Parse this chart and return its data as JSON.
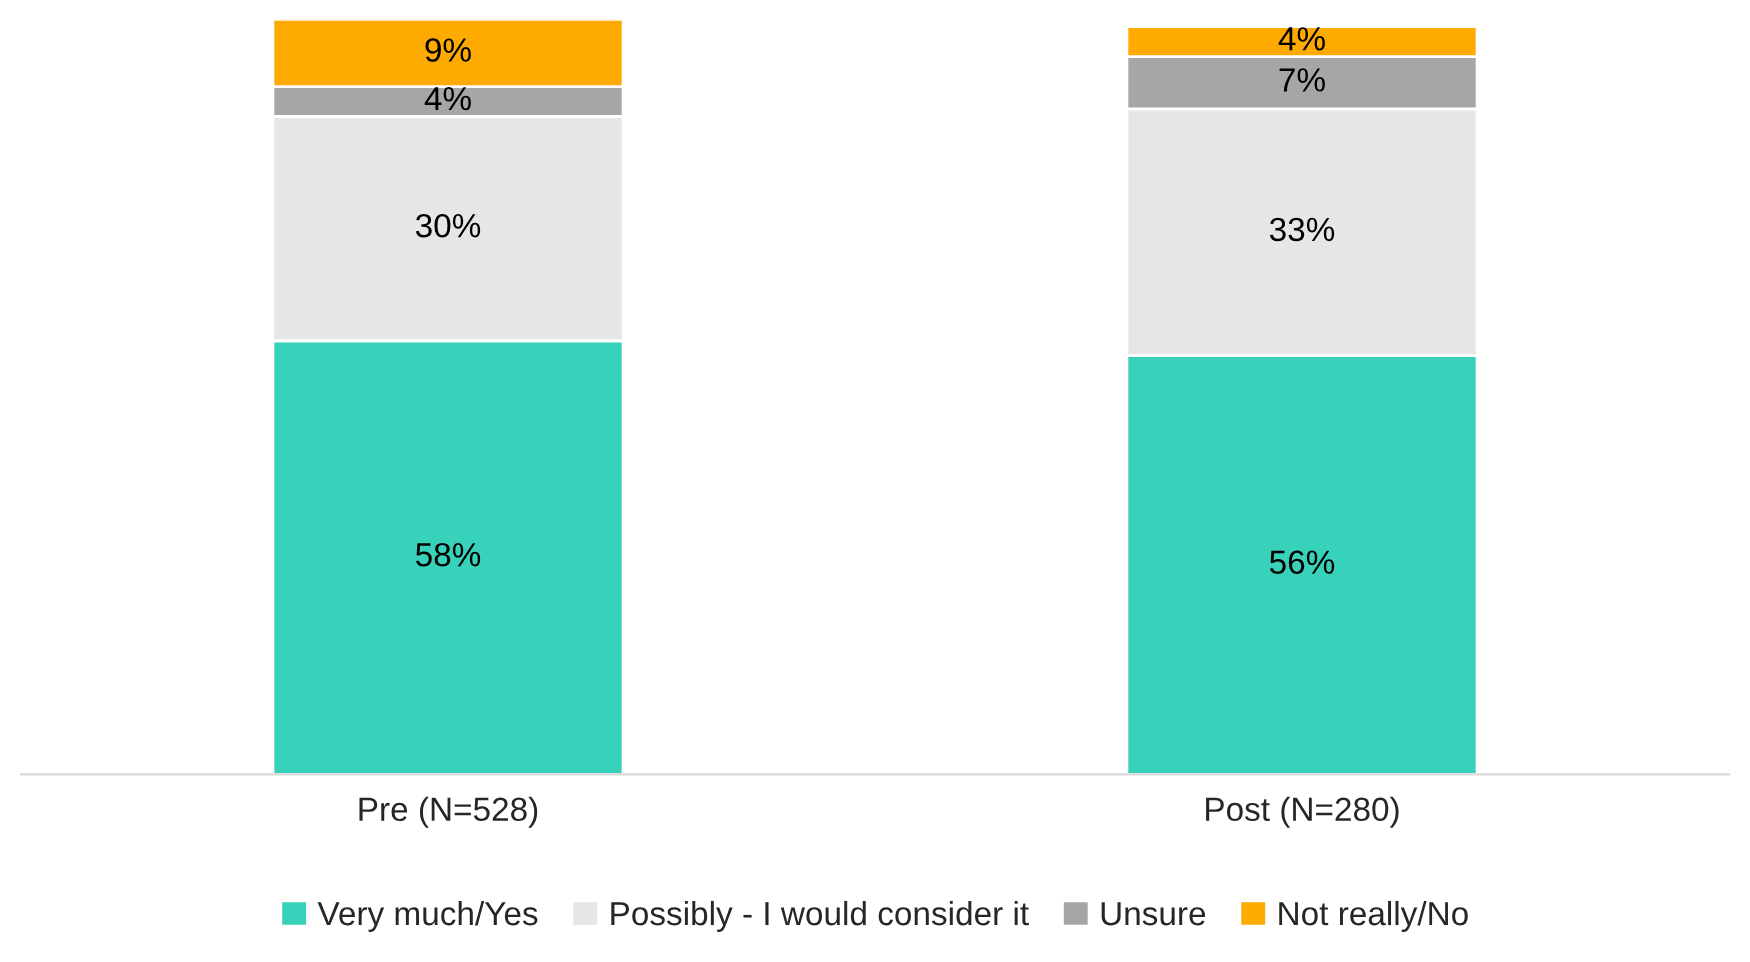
{
  "chart_data": {
    "type": "bar",
    "stacked": true,
    "categories": [
      "Pre (N=528)",
      "Post (N=280)"
    ],
    "series": [
      {
        "name": "Very much/Yes",
        "color": "#38d1b9",
        "values": [
          58,
          56
        ],
        "value_labels": [
          "58%",
          "56%"
        ]
      },
      {
        "name": "Possibly - I would consider it",
        "color": "#e6e6e6",
        "values": [
          30,
          33
        ],
        "value_labels": [
          "30%",
          "33%"
        ]
      },
      {
        "name": "Unsure",
        "color": "#a6a6a6",
        "values": [
          4,
          7
        ],
        "value_labels": [
          "4%",
          "7%"
        ]
      },
      {
        "name": "Not really/No",
        "color": "#ffaa00",
        "values": [
          9,
          4
        ],
        "value_labels": [
          "9%",
          "4%"
        ]
      }
    ],
    "legend": "bottom",
    "grid": false
  }
}
